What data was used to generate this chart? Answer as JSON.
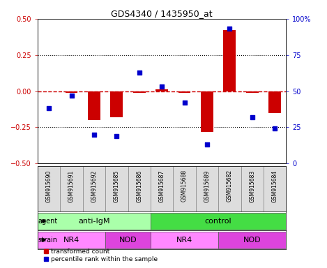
{
  "title": "GDS4340 / 1435950_at",
  "samples": [
    "GSM915690",
    "GSM915691",
    "GSM915692",
    "GSM915685",
    "GSM915686",
    "GSM915687",
    "GSM915688",
    "GSM915689",
    "GSM915682",
    "GSM915683",
    "GSM915684"
  ],
  "transformed_count": [
    0.0,
    -0.01,
    -0.2,
    -0.18,
    -0.01,
    0.01,
    -0.01,
    -0.28,
    0.42,
    -0.01,
    -0.15
  ],
  "percentile_rank": [
    38,
    47,
    20,
    19,
    63,
    53,
    42,
    13,
    93,
    32,
    24
  ],
  "ylim_left": [
    -0.5,
    0.5
  ],
  "ylim_right": [
    0,
    100
  ],
  "yticks_left": [
    -0.5,
    -0.25,
    0.0,
    0.25,
    0.5
  ],
  "yticks_right": [
    0,
    25,
    50,
    75,
    100
  ],
  "bar_color": "#cc0000",
  "dot_color": "#0000cc",
  "dashed_line_color": "#cc0000",
  "agent_groups": [
    {
      "label": "anti-IgM",
      "start": 0,
      "end": 5,
      "color": "#aaffaa"
    },
    {
      "label": "control",
      "start": 5,
      "end": 11,
      "color": "#44dd44"
    }
  ],
  "strain_groups": [
    {
      "label": "NR4",
      "start": 0,
      "end": 3,
      "color": "#ff88ff"
    },
    {
      "label": "NOD",
      "start": 3,
      "end": 5,
      "color": "#dd44dd"
    },
    {
      "label": "NR4",
      "start": 5,
      "end": 8,
      "color": "#ff88ff"
    },
    {
      "label": "NOD",
      "start": 8,
      "end": 11,
      "color": "#dd44dd"
    }
  ],
  "legend_red_label": "transformed count",
  "legend_blue_label": "percentile rank within the sample",
  "agent_label": "agent",
  "strain_label": "strain",
  "label_fontsize": 7,
  "tick_fontsize": 7,
  "sample_fontsize": 5.5,
  "group_fontsize": 8,
  "title_fontsize": 9
}
